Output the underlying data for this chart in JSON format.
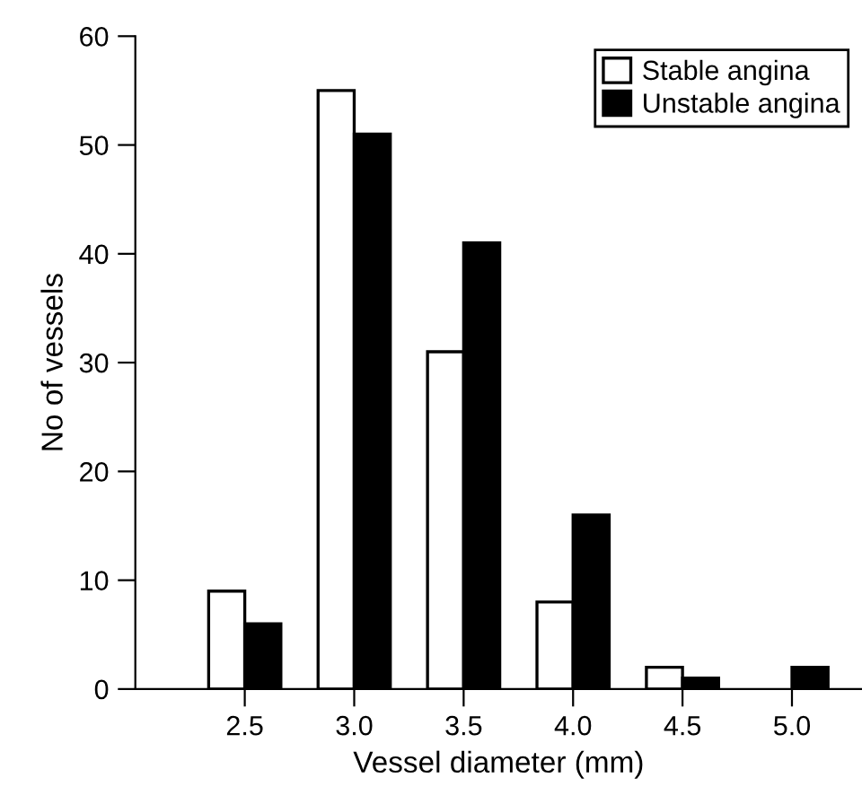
{
  "chart_data": {
    "type": "bar",
    "xlabel": "Vessel diameter (mm)",
    "ylabel": "No of vessels",
    "categories": [
      "2.5",
      "3.0",
      "3.5",
      "4.0",
      "4.5",
      "5.0"
    ],
    "series": [
      {
        "name": "Stable angina",
        "color": "#ffffff",
        "values": [
          9,
          55,
          31,
          8,
          2,
          0
        ]
      },
      {
        "name": "Unstable angina",
        "color": "#000000",
        "values": [
          6,
          51,
          41,
          16,
          1,
          2
        ]
      }
    ],
    "ylim": [
      0,
      60
    ],
    "yticks": [
      0,
      10,
      20,
      30,
      40,
      50,
      60
    ],
    "grid": false,
    "legend": "top right"
  }
}
